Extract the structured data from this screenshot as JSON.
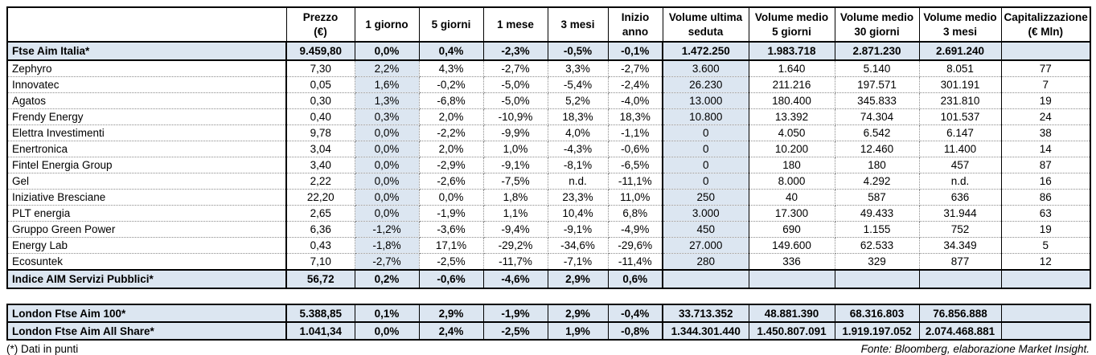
{
  "table": {
    "columns": [
      {
        "label": ""
      },
      {
        "label": "Prezzo\n(€)"
      },
      {
        "label": "1 giorno"
      },
      {
        "label": "5 giorni"
      },
      {
        "label": "1 mese"
      },
      {
        "label": "3 mesi"
      },
      {
        "label": "Inizio anno"
      },
      {
        "label": "Volume ultima\nseduta"
      },
      {
        "label": "Volume medio\n5 giorni"
      },
      {
        "label": "Volume medio\n30 giorni"
      },
      {
        "label": "Volume medio\n3 mesi"
      },
      {
        "label": "Capitalizzazione\n(€ Mln)"
      }
    ],
    "rows": [
      {
        "name": "Ftse Aim Italia*",
        "type": "index",
        "values": [
          "9.459,80",
          "0,0%",
          "0,4%",
          "-2,3%",
          "-0,5%",
          "-0,1%",
          "1.472.250",
          "1.983.718",
          "2.871.230",
          "2.691.240",
          ""
        ]
      },
      {
        "name": "Zephyro",
        "type": "stock",
        "values": [
          "7,30",
          "2,2%",
          "4,3%",
          "-2,7%",
          "3,3%",
          "-2,7%",
          "3.600",
          "1.640",
          "5.140",
          "8.051",
          "77"
        ]
      },
      {
        "name": "Innovatec",
        "type": "stock",
        "values": [
          "0,05",
          "1,6%",
          "-0,2%",
          "-5,0%",
          "-5,4%",
          "-2,4%",
          "26.230",
          "211.216",
          "197.571",
          "301.191",
          "7"
        ]
      },
      {
        "name": "Agatos",
        "type": "stock",
        "values": [
          "0,30",
          "1,3%",
          "-6,8%",
          "-5,0%",
          "5,2%",
          "-4,0%",
          "13.000",
          "180.400",
          "345.833",
          "231.810",
          "19"
        ]
      },
      {
        "name": "Frendy Energy",
        "type": "stock",
        "values": [
          "0,40",
          "0,3%",
          "2,0%",
          "-10,9%",
          "18,3%",
          "18,3%",
          "10.800",
          "13.392",
          "74.304",
          "101.537",
          "24"
        ]
      },
      {
        "name": "Elettra Investimenti",
        "type": "stock",
        "values": [
          "9,78",
          "0,0%",
          "-2,2%",
          "-9,9%",
          "4,0%",
          "-1,1%",
          "0",
          "4.050",
          "6.542",
          "6.147",
          "38"
        ]
      },
      {
        "name": "Enertronica",
        "type": "stock",
        "values": [
          "3,04",
          "0,0%",
          "2,0%",
          "1,0%",
          "-4,3%",
          "-0,6%",
          "0",
          "10.200",
          "12.460",
          "11.400",
          "14"
        ]
      },
      {
        "name": "Fintel Energia Group",
        "type": "stock",
        "values": [
          "3,40",
          "0,0%",
          "-2,9%",
          "-9,1%",
          "-8,1%",
          "-6,5%",
          "0",
          "180",
          "180",
          "457",
          "87"
        ]
      },
      {
        "name": "Gel",
        "type": "stock",
        "values": [
          "2,22",
          "0,0%",
          "-2,6%",
          "-7,5%",
          "n.d.",
          "-11,1%",
          "0",
          "8.000",
          "4.292",
          "n.d.",
          "16"
        ]
      },
      {
        "name": "Iniziative Bresciane",
        "type": "stock",
        "values": [
          "22,20",
          "0,0%",
          "0,0%",
          "1,8%",
          "23,3%",
          "11,0%",
          "250",
          "40",
          "587",
          "636",
          "86"
        ]
      },
      {
        "name": "PLT energia",
        "type": "stock",
        "values": [
          "2,65",
          "0,0%",
          "-1,9%",
          "1,1%",
          "10,4%",
          "6,8%",
          "3.000",
          "17.300",
          "49.433",
          "31.944",
          "63"
        ]
      },
      {
        "name": "Gruppo Green Power",
        "type": "stock",
        "values": [
          "6,36",
          "-1,2%",
          "-3,6%",
          "-9,4%",
          "-9,1%",
          "-4,9%",
          "450",
          "690",
          "1.155",
          "752",
          "19"
        ]
      },
      {
        "name": "Energy Lab",
        "type": "stock",
        "values": [
          "0,43",
          "-1,8%",
          "17,1%",
          "-29,2%",
          "-34,6%",
          "-29,6%",
          "27.000",
          "149.600",
          "62.533",
          "34.349",
          "5"
        ]
      },
      {
        "name": "Ecosuntek",
        "type": "stock",
        "values": [
          "7,10",
          "-2,7%",
          "-2,5%",
          "-11,7%",
          "-7,1%",
          "-11,4%",
          "280",
          "336",
          "329",
          "877",
          "12"
        ]
      },
      {
        "name": "Indice AIM Servizi Pubblici*",
        "type": "index",
        "values": [
          "56,72",
          "0,2%",
          "-0,6%",
          "-4,6%",
          "2,9%",
          "0,6%",
          "",
          "",
          "",
          "",
          ""
        ]
      }
    ]
  },
  "london_table": {
    "rows": [
      {
        "name": "London Ftse Aim 100*",
        "type": "index",
        "values": [
          "5.388,85",
          "0,1%",
          "2,9%",
          "-1,9%",
          "2,9%",
          "-0,4%",
          "33.713.352",
          "48.881.390",
          "68.316.803",
          "76.856.888",
          ""
        ]
      },
      {
        "name": "London Ftse Aim All Share*",
        "type": "index",
        "values": [
          "1.041,34",
          "0,0%",
          "2,4%",
          "-2,5%",
          "1,9%",
          "-0,8%",
          "1.344.301.440",
          "1.450.807.091",
          "1.919.197.052",
          "2.074.468.881",
          ""
        ]
      }
    ]
  },
  "footer": {
    "note": "(*) Dati in punti",
    "source": "Fonte: Bloomberg, elaborazione Market Insight."
  },
  "colors": {
    "shade": "#dce6f1",
    "border": "#000000",
    "grid_dotted": "#8a8a8a"
  }
}
